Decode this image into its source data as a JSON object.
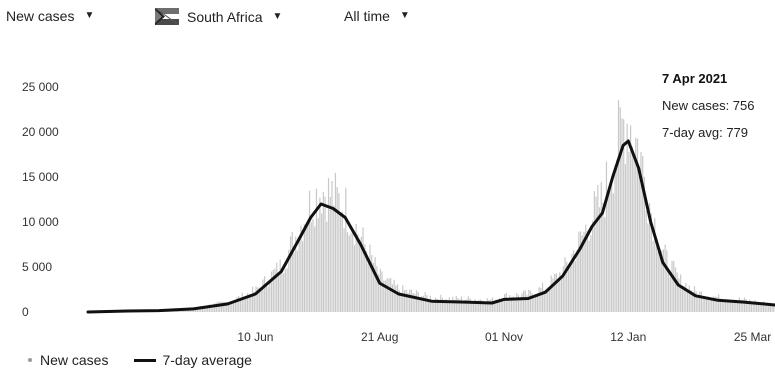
{
  "controls": {
    "metric": {
      "label": "New cases",
      "icon": "caret-down-icon"
    },
    "country": {
      "label": "South Africa",
      "icon": "south-africa-flag-icon"
    },
    "range": {
      "label": "All time",
      "icon": "caret-down-icon"
    }
  },
  "tooltip": {
    "date": "7 Apr 2021",
    "new_cases": "New cases: 756",
    "avg": "7-day avg: 779"
  },
  "legend": {
    "new_cases": "New cases",
    "avg": "7-day average"
  },
  "colors": {
    "bars": "#9a9a9a",
    "avg_line": "#111111"
  },
  "chart_data": {
    "type": "area",
    "y_ticks": [
      0,
      5000,
      10000,
      15000,
      20000,
      25000
    ],
    "y_tick_labels": [
      "0",
      "5 000",
      "10 000",
      "15 000",
      "20 000",
      "25 000"
    ],
    "ylim": [
      0,
      25000
    ],
    "x_tick_labels": [
      "10 Jun",
      "21 Aug",
      "01 Nov",
      "12 Jan",
      "25 Mar"
    ],
    "grid": false,
    "legend_position": "bottom-left",
    "series": [
      {
        "name": "7-day average",
        "points": [
          [
            "2020-03-05",
            0
          ],
          [
            "2020-03-25",
            100
          ],
          [
            "2020-04-15",
            150
          ],
          [
            "2020-05-05",
            350
          ],
          [
            "2020-05-25",
            900
          ],
          [
            "2020-06-10",
            2000
          ],
          [
            "2020-06-25",
            4500
          ],
          [
            "2020-07-05",
            8000
          ],
          [
            "2020-07-12",
            10500
          ],
          [
            "2020-07-18",
            12000
          ],
          [
            "2020-07-25",
            11500
          ],
          [
            "2020-08-01",
            10500
          ],
          [
            "2020-08-10",
            7500
          ],
          [
            "2020-08-21",
            3200
          ],
          [
            "2020-09-01",
            2000
          ],
          [
            "2020-09-20",
            1200
          ],
          [
            "2020-10-10",
            1100
          ],
          [
            "2020-10-25",
            1000
          ],
          [
            "2020-11-01",
            1400
          ],
          [
            "2020-11-15",
            1500
          ],
          [
            "2020-11-25",
            2200
          ],
          [
            "2020-12-05",
            4000
          ],
          [
            "2020-12-15",
            7000
          ],
          [
            "2020-12-22",
            9500
          ],
          [
            "2020-12-28",
            11000
          ],
          [
            "2021-01-03",
            15000
          ],
          [
            "2021-01-09",
            18500
          ],
          [
            "2021-01-12",
            19000
          ],
          [
            "2021-01-18",
            16000
          ],
          [
            "2021-01-25",
            10000
          ],
          [
            "2021-02-01",
            5500
          ],
          [
            "2021-02-10",
            3000
          ],
          [
            "2021-02-20",
            1800
          ],
          [
            "2021-03-05",
            1300
          ],
          [
            "2021-03-20",
            1100
          ],
          [
            "2021-04-07",
            779
          ]
        ]
      },
      {
        "name": "New cases",
        "points": [
          [
            "2020-03-05",
            0
          ],
          [
            "2020-03-25",
            130
          ],
          [
            "2020-04-15",
            200
          ],
          [
            "2020-05-05",
            450
          ],
          [
            "2020-05-25",
            1100
          ],
          [
            "2020-06-10",
            2400
          ],
          [
            "2020-06-25",
            5200
          ],
          [
            "2020-07-05",
            9200
          ],
          [
            "2020-07-12",
            12200
          ],
          [
            "2020-07-18",
            13600
          ],
          [
            "2020-07-25",
            12900
          ],
          [
            "2020-08-01",
            11600
          ],
          [
            "2020-08-10",
            8200
          ],
          [
            "2020-08-21",
            3900
          ],
          [
            "2020-09-01",
            2500
          ],
          [
            "2020-09-20",
            1600
          ],
          [
            "2020-10-10",
            1450
          ],
          [
            "2020-10-25",
            1350
          ],
          [
            "2020-11-01",
            1800
          ],
          [
            "2020-11-15",
            2000
          ],
          [
            "2020-11-25",
            2800
          ],
          [
            "2020-12-05",
            4600
          ],
          [
            "2020-12-15",
            8000
          ],
          [
            "2020-12-22",
            10800
          ],
          [
            "2020-12-28",
            12500
          ],
          [
            "2021-01-03",
            17000
          ],
          [
            "2021-01-09",
            21000
          ],
          [
            "2021-01-12",
            21500
          ],
          [
            "2021-01-18",
            18000
          ],
          [
            "2021-01-25",
            11200
          ],
          [
            "2021-02-01",
            6400
          ],
          [
            "2021-02-10",
            3600
          ],
          [
            "2021-02-20",
            2200
          ],
          [
            "2021-03-05",
            1600
          ],
          [
            "2021-03-20",
            1350
          ],
          [
            "2021-04-07",
            756
          ]
        ]
      }
    ]
  }
}
